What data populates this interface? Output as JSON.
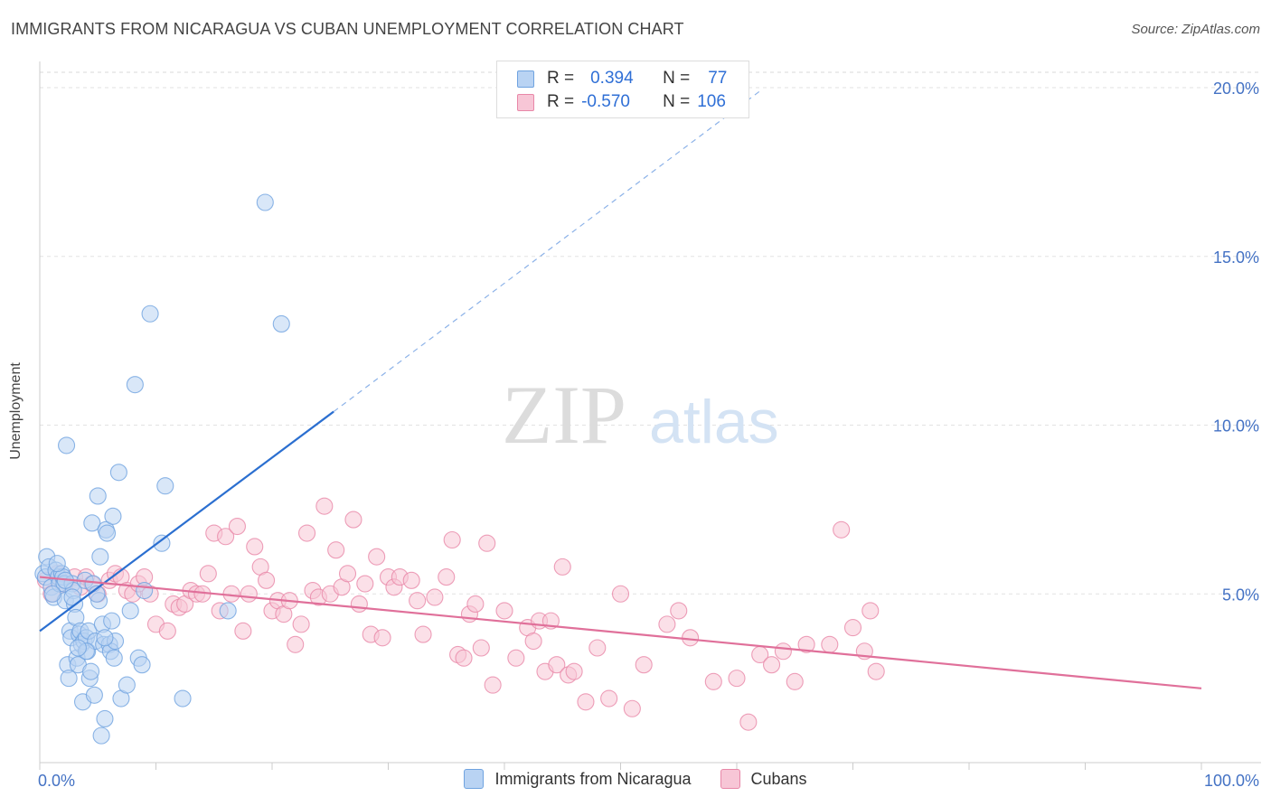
{
  "header": {
    "title": "IMMIGRANTS FROM NICARAGUA VS CUBAN UNEMPLOYMENT CORRELATION CHART",
    "source": "Source: ZipAtlas.com"
  },
  "watermark": {
    "zip": "ZIP",
    "atlas": "atlas"
  },
  "legend": {
    "rows": [
      {
        "r_key": "R =",
        "r_val": "0.394",
        "n_key": "N =",
        "n_val": "77",
        "color": "#a8c8f0"
      },
      {
        "r_key": "R =",
        "r_val": "-0.570",
        "n_key": "N =",
        "n_val": "106",
        "color": "#f4b8cc"
      }
    ]
  },
  "bottom_legend": [
    {
      "label": "Immigrants from Nicaragua",
      "color": "#a8c8f0"
    },
    {
      "label": "Cubans",
      "color": "#f4b8cc"
    }
  ],
  "chart_data": {
    "type": "scatter",
    "title": "IMMIGRANTS FROM NICARAGUA VS CUBAN UNEMPLOYMENT CORRELATION CHART",
    "xlabel": "",
    "ylabel": "Unemployment",
    "xlim": [
      0,
      100
    ],
    "ylim": [
      0,
      20
    ],
    "x_tick_labels": [
      "0.0%",
      "100.0%"
    ],
    "y_ticks": [
      5,
      10,
      15,
      20
    ],
    "y_tick_labels": [
      "5.0%",
      "10.0%",
      "15.0%",
      "20.0%"
    ],
    "grid": true,
    "legend_position": "top-center",
    "series": [
      {
        "name": "Immigrants from Nicaragua",
        "color": "#6fa3e0",
        "fill": "#b9d3f3",
        "trend": {
          "x0": 0,
          "y0": 3.9,
          "x1": 25.3,
          "y1": 10.4,
          "dashed_to_x": 62,
          "dashed_to_y": 19.9
        },
        "points": [
          [
            0.3,
            5.6
          ],
          [
            0.5,
            5.5
          ],
          [
            0.6,
            6.1
          ],
          [
            0.8,
            5.8
          ],
          [
            1.0,
            5.2
          ],
          [
            1.2,
            4.9
          ],
          [
            1.4,
            5.7
          ],
          [
            1.6,
            5.5
          ],
          [
            1.7,
            5.3
          ],
          [
            1.9,
            5.6
          ],
          [
            2.0,
            5.5
          ],
          [
            2.1,
            5.3
          ],
          [
            2.2,
            4.8
          ],
          [
            2.3,
            9.4
          ],
          [
            2.4,
            2.9
          ],
          [
            2.5,
            2.5
          ],
          [
            2.6,
            3.9
          ],
          [
            2.7,
            3.7
          ],
          [
            2.8,
            5.3
          ],
          [
            2.9,
            5.1
          ],
          [
            3.0,
            4.7
          ],
          [
            3.1,
            4.3
          ],
          [
            3.2,
            3.1
          ],
          [
            3.3,
            2.9
          ],
          [
            3.4,
            3.8
          ],
          [
            3.5,
            3.9
          ],
          [
            3.6,
            3.5
          ],
          [
            3.7,
            1.8
          ],
          [
            3.8,
            3.6
          ],
          [
            3.9,
            5.4
          ],
          [
            4.0,
            3.7
          ],
          [
            4.1,
            3.3
          ],
          [
            4.2,
            3.9
          ],
          [
            4.3,
            2.5
          ],
          [
            4.4,
            2.7
          ],
          [
            4.5,
            7.1
          ],
          [
            4.6,
            5.3
          ],
          [
            4.7,
            2.0
          ],
          [
            4.8,
            3.6
          ],
          [
            5.0,
            7.9
          ],
          [
            5.1,
            4.8
          ],
          [
            5.2,
            6.1
          ],
          [
            5.3,
            0.8
          ],
          [
            5.4,
            4.1
          ],
          [
            5.5,
            3.5
          ],
          [
            5.6,
            1.3
          ],
          [
            5.7,
            6.9
          ],
          [
            5.8,
            6.8
          ],
          [
            6.0,
            3.5
          ],
          [
            6.1,
            3.3
          ],
          [
            6.2,
            4.2
          ],
          [
            6.3,
            7.3
          ],
          [
            6.4,
            3.1
          ],
          [
            6.5,
            3.6
          ],
          [
            6.8,
            8.6
          ],
          [
            7.0,
            1.9
          ],
          [
            7.5,
            2.3
          ],
          [
            7.8,
            4.5
          ],
          [
            8.2,
            11.2
          ],
          [
            8.5,
            3.1
          ],
          [
            8.8,
            2.9
          ],
          [
            9.0,
            5.1
          ],
          [
            9.5,
            13.3
          ],
          [
            10.5,
            6.5
          ],
          [
            10.8,
            8.2
          ],
          [
            12.3,
            1.9
          ],
          [
            16.2,
            4.5
          ],
          [
            19.4,
            16.6
          ],
          [
            20.8,
            13.0
          ],
          [
            1.1,
            5.0
          ],
          [
            1.5,
            5.9
          ],
          [
            2.2,
            5.4
          ],
          [
            4.0,
            3.3
          ],
          [
            4.9,
            5.0
          ],
          [
            3.3,
            3.4
          ],
          [
            5.6,
            3.7
          ],
          [
            2.8,
            4.9
          ]
        ]
      },
      {
        "name": "Cubans",
        "color": "#e887a8",
        "fill": "#f7c6d6",
        "trend": {
          "x0": 0,
          "y0": 5.5,
          "x1": 100,
          "y1": 2.2
        },
        "points": [
          [
            0.5,
            5.4
          ],
          [
            1.0,
            5.0
          ],
          [
            1.5,
            5.6
          ],
          [
            2.0,
            5.3
          ],
          [
            3.0,
            5.5
          ],
          [
            3.5,
            5.2
          ],
          [
            4.0,
            5.5
          ],
          [
            4.5,
            5.3
          ],
          [
            5.0,
            5.0
          ],
          [
            6.0,
            5.4
          ],
          [
            6.5,
            5.6
          ],
          [
            7.0,
            5.5
          ],
          [
            7.5,
            5.1
          ],
          [
            8.0,
            5.0
          ],
          [
            8.5,
            5.3
          ],
          [
            9.0,
            5.5
          ],
          [
            9.5,
            5.0
          ],
          [
            10.0,
            4.1
          ],
          [
            11.0,
            3.9
          ],
          [
            11.5,
            4.7
          ],
          [
            12.0,
            4.6
          ],
          [
            12.5,
            4.7
          ],
          [
            13.0,
            5.1
          ],
          [
            13.5,
            5.0
          ],
          [
            14.0,
            5.0
          ],
          [
            14.5,
            5.6
          ],
          [
            15.0,
            6.8
          ],
          [
            15.5,
            4.5
          ],
          [
            16.0,
            6.7
          ],
          [
            16.5,
            5.0
          ],
          [
            17.0,
            7.0
          ],
          [
            17.5,
            3.9
          ],
          [
            18.0,
            5.0
          ],
          [
            18.5,
            6.4
          ],
          [
            19.0,
            5.8
          ],
          [
            19.5,
            5.4
          ],
          [
            20.0,
            4.5
          ],
          [
            20.5,
            4.8
          ],
          [
            21.0,
            4.4
          ],
          [
            21.5,
            4.8
          ],
          [
            22.0,
            3.5
          ],
          [
            22.5,
            4.1
          ],
          [
            23.0,
            6.8
          ],
          [
            23.5,
            5.1
          ],
          [
            24.0,
            4.9
          ],
          [
            24.5,
            7.6
          ],
          [
            25.0,
            5.0
          ],
          [
            25.5,
            6.3
          ],
          [
            26.0,
            5.2
          ],
          [
            26.5,
            5.6
          ],
          [
            27.0,
            7.2
          ],
          [
            27.5,
            4.7
          ],
          [
            28.0,
            5.3
          ],
          [
            28.5,
            3.8
          ],
          [
            29.0,
            6.1
          ],
          [
            29.5,
            3.7
          ],
          [
            30.0,
            5.5
          ],
          [
            30.5,
            5.2
          ],
          [
            31.0,
            5.5
          ],
          [
            32.0,
            5.4
          ],
          [
            32.5,
            4.8
          ],
          [
            33.0,
            3.8
          ],
          [
            34.0,
            4.9
          ],
          [
            35.0,
            5.5
          ],
          [
            35.5,
            6.6
          ],
          [
            36.0,
            3.2
          ],
          [
            36.5,
            3.1
          ],
          [
            37.0,
            4.4
          ],
          [
            37.5,
            4.7
          ],
          [
            38.0,
            3.4
          ],
          [
            38.5,
            6.5
          ],
          [
            39.0,
            2.3
          ],
          [
            40.0,
            4.5
          ],
          [
            41.0,
            3.1
          ],
          [
            42.0,
            4.0
          ],
          [
            42.5,
            3.6
          ],
          [
            43.0,
            4.2
          ],
          [
            43.5,
            2.7
          ],
          [
            44.0,
            4.2
          ],
          [
            44.5,
            2.9
          ],
          [
            45.0,
            5.8
          ],
          [
            45.5,
            2.6
          ],
          [
            46.0,
            2.7
          ],
          [
            47.0,
            1.8
          ],
          [
            48.0,
            3.4
          ],
          [
            49.0,
            1.9
          ],
          [
            50.0,
            5.0
          ],
          [
            51.0,
            1.6
          ],
          [
            52.0,
            2.9
          ],
          [
            54.0,
            4.1
          ],
          [
            55.0,
            4.5
          ],
          [
            56.0,
            3.7
          ],
          [
            58.0,
            2.4
          ],
          [
            60.0,
            2.5
          ],
          [
            61.0,
            1.2
          ],
          [
            62.0,
            3.2
          ],
          [
            63.0,
            2.9
          ],
          [
            64.0,
            3.3
          ],
          [
            65.0,
            2.4
          ],
          [
            66.0,
            3.5
          ],
          [
            68.0,
            3.5
          ],
          [
            69.0,
            6.9
          ],
          [
            70.0,
            4.0
          ],
          [
            71.0,
            3.3
          ],
          [
            72.0,
            2.7
          ],
          [
            71.5,
            4.5
          ]
        ]
      }
    ]
  }
}
